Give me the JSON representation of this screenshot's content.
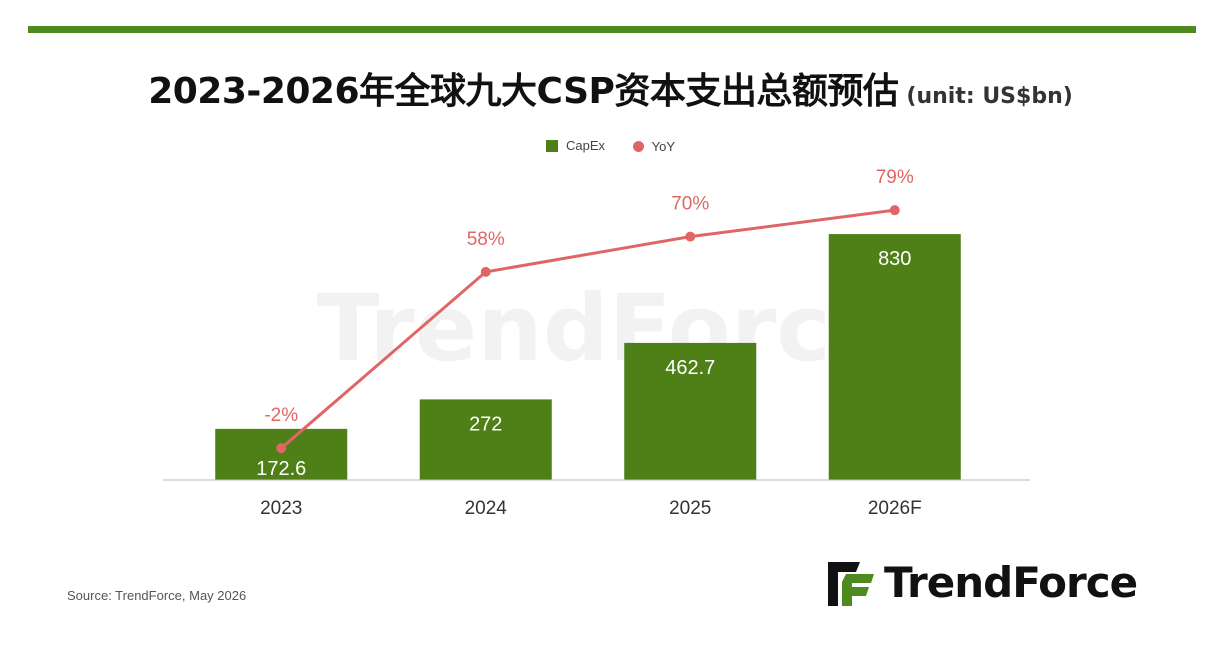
{
  "title": "2023-2026年全球九大CSP资本支出总额预估",
  "unit": "(unit: US$bn)",
  "source": "Source: TrendForce, May 2026",
  "brand": {
    "name": "TrendForce",
    "watermark": "TrendForce"
  },
  "colors": {
    "bar": "#4f7f17",
    "line": "#e06666",
    "accent_bar": "#4f8a1e"
  },
  "chart_data": {
    "type": "bar",
    "categories": [
      "2023",
      "2024",
      "2025",
      "2026F"
    ],
    "series": [
      {
        "name": "CapEx",
        "type": "bar",
        "values": [
          172.6,
          272,
          462.7,
          830
        ],
        "labels": [
          "172.6",
          "272",
          "462.7",
          "830"
        ]
      },
      {
        "name": "YoY",
        "type": "line",
        "values": [
          -2,
          58,
          70,
          79
        ],
        "labels": [
          "-2%",
          "58%",
          "70%",
          "79%"
        ]
      }
    ],
    "legend": "top-center",
    "grid": false
  }
}
